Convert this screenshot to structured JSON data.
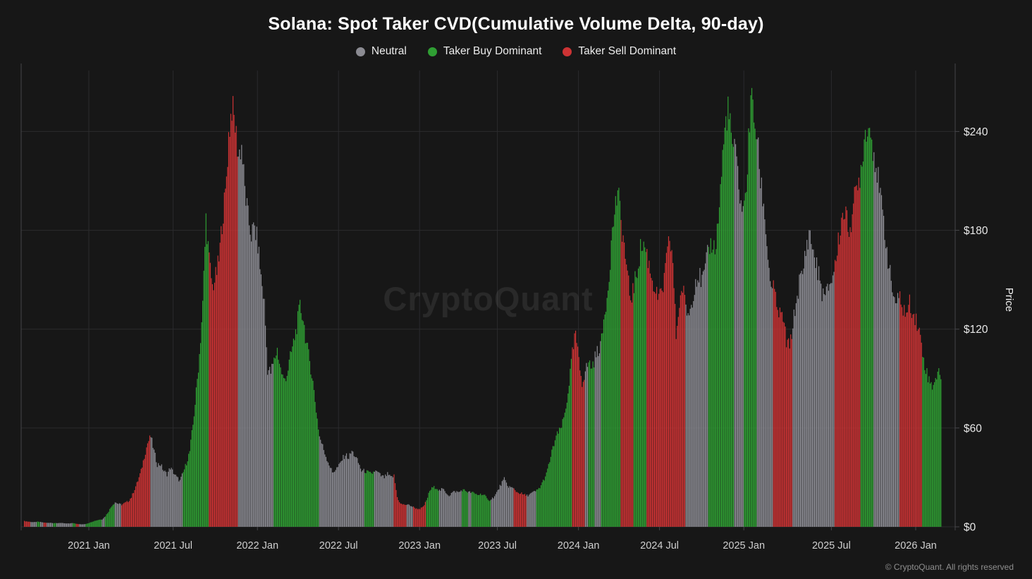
{
  "header": {
    "title": "Solana: Spot Taker CVD(Cumulative Volume Delta, 90-day)",
    "legend": [
      {
        "label": "Neutral",
        "color": "#8b8b92"
      },
      {
        "label": "Taker Buy Dominant",
        "color": "#2f9e33"
      },
      {
        "label": "Taker Sell Dominant",
        "color": "#cd3334"
      }
    ]
  },
  "watermark": {
    "text": "CryptoQuant"
  },
  "footer": {
    "copyright": "© CryptoQuant. All rights reserved"
  },
  "chart_data": {
    "type": "bar",
    "title": "Solana: Spot Taker CVD(Cumulative Volume Delta, 90-day)",
    "xlabel": "",
    "ylabel": "Price",
    "ylim": [
      0,
      277
    ],
    "grid": true,
    "legend_position": "top-center",
    "y_ticks": [
      {
        "label": "$0",
        "value": 0
      },
      {
        "label": "$60",
        "value": 60
      },
      {
        "label": "$120",
        "value": 120
      },
      {
        "label": "$180",
        "value": 180
      },
      {
        "label": "$240",
        "value": 240
      }
    ],
    "x_ticks": [
      {
        "label": "2021 Jan",
        "index": 20
      },
      {
        "label": "2021 Jul",
        "index": 46
      },
      {
        "label": "2022 Jan",
        "index": 72
      },
      {
        "label": "2022 Jul",
        "index": 97
      },
      {
        "label": "2023 Jan",
        "index": 122
      },
      {
        "label": "2023 Jul",
        "index": 146
      },
      {
        "label": "2024 Jan",
        "index": 171
      },
      {
        "label": "2024 Jul",
        "index": 196
      },
      {
        "label": "2025 Jan",
        "index": 222
      },
      {
        "label": "2025 Jul",
        "index": 249
      },
      {
        "label": "2026 Jan",
        "index": 275
      }
    ],
    "interval": "weekly anchors starting 2020-08",
    "color_map": {
      "n": "neutral",
      "b": "taker_buy",
      "s": "taker_sell"
    },
    "colors": {
      "neutral": "#8b8b92",
      "taker_buy": "#2f9e33",
      "taker_sell": "#cd3334"
    },
    "points": [
      [
        3.5,
        "s"
      ],
      [
        3.2,
        "s"
      ],
      [
        3.0,
        "n"
      ],
      [
        2.8,
        "n"
      ],
      [
        3.1,
        "b"
      ],
      [
        2.9,
        "n"
      ],
      [
        2.6,
        "s"
      ],
      [
        2.4,
        "n"
      ],
      [
        2.5,
        "n"
      ],
      [
        2.3,
        "b"
      ],
      [
        2.2,
        "n"
      ],
      [
        2.4,
        "n"
      ],
      [
        2.2,
        "n"
      ],
      [
        2.0,
        "n"
      ],
      [
        2.1,
        "n"
      ],
      [
        2.3,
        "b"
      ],
      [
        1.9,
        "s"
      ],
      [
        1.6,
        "n"
      ],
      [
        1.5,
        "n"
      ],
      [
        1.8,
        "b"
      ],
      [
        2.4,
        "b"
      ],
      [
        3.2,
        "b"
      ],
      [
        3.8,
        "b"
      ],
      [
        4.3,
        "b"
      ],
      [
        4.6,
        "n"
      ],
      [
        6.5,
        "b"
      ],
      [
        9.5,
        "b"
      ],
      [
        13,
        "b"
      ],
      [
        15,
        "n"
      ],
      [
        14,
        "n"
      ],
      [
        13.5,
        "s"
      ],
      [
        14.5,
        "s"
      ],
      [
        15.5,
        "s"
      ],
      [
        18,
        "s"
      ],
      [
        23,
        "s"
      ],
      [
        28,
        "s"
      ],
      [
        34,
        "s"
      ],
      [
        43,
        "s"
      ],
      [
        51,
        "s"
      ],
      [
        55,
        "n"
      ],
      [
        46,
        "n"
      ],
      [
        38,
        "n"
      ],
      [
        38,
        "n"
      ],
      [
        34,
        "n"
      ],
      [
        32,
        "n"
      ],
      [
        36,
        "n"
      ],
      [
        33,
        "n"
      ],
      [
        30,
        "n"
      ],
      [
        28,
        "n"
      ],
      [
        33,
        "b"
      ],
      [
        39,
        "b"
      ],
      [
        46,
        "b"
      ],
      [
        62,
        "b"
      ],
      [
        82,
        "b"
      ],
      [
        105,
        "b"
      ],
      [
        135,
        "b"
      ],
      [
        188,
        "b"
      ],
      [
        162,
        "s"
      ],
      [
        146,
        "s"
      ],
      [
        152,
        "s"
      ],
      [
        162,
        "s"
      ],
      [
        186,
        "s"
      ],
      [
        202,
        "s"
      ],
      [
        238,
        "s"
      ],
      [
        256,
        "s"
      ],
      [
        244,
        "s"
      ],
      [
        226,
        "n"
      ],
      [
        232,
        "n"
      ],
      [
        205,
        "n"
      ],
      [
        188,
        "n"
      ],
      [
        178,
        "n"
      ],
      [
        182,
        "n"
      ],
      [
        172,
        "n"
      ],
      [
        152,
        "n"
      ],
      [
        136,
        "n"
      ],
      [
        96,
        "n"
      ],
      [
        94,
        "n"
      ],
      [
        101,
        "b"
      ],
      [
        108,
        "b"
      ],
      [
        96,
        "b"
      ],
      [
        89,
        "b"
      ],
      [
        93,
        "b"
      ],
      [
        103,
        "b"
      ],
      [
        112,
        "b"
      ],
      [
        122,
        "b"
      ],
      [
        134,
        "b"
      ],
      [
        127,
        "b"
      ],
      [
        111,
        "b"
      ],
      [
        101,
        "b"
      ],
      [
        88,
        "b"
      ],
      [
        71,
        "b"
      ],
      [
        55,
        "n"
      ],
      [
        49,
        "n"
      ],
      [
        43,
        "n"
      ],
      [
        38,
        "n"
      ],
      [
        33,
        "n"
      ],
      [
        35,
        "n"
      ],
      [
        37,
        "n"
      ],
      [
        41,
        "n"
      ],
      [
        44,
        "n"
      ],
      [
        42,
        "n"
      ],
      [
        46,
        "n"
      ],
      [
        43,
        "n"
      ],
      [
        39,
        "n"
      ],
      [
        34,
        "n"
      ],
      [
        34,
        "b"
      ],
      [
        33,
        "b"
      ],
      [
        32,
        "b"
      ],
      [
        34,
        "n"
      ],
      [
        33,
        "n"
      ],
      [
        31,
        "n"
      ],
      [
        30,
        "n"
      ],
      [
        32,
        "n"
      ],
      [
        30,
        "n"
      ],
      [
        31,
        "s"
      ],
      [
        18,
        "s"
      ],
      [
        14,
        "s"
      ],
      [
        13.5,
        "s"
      ],
      [
        13.5,
        "n"
      ],
      [
        13,
        "n"
      ],
      [
        12,
        "s"
      ],
      [
        11,
        "s"
      ],
      [
        11,
        "s"
      ],
      [
        12,
        "s"
      ],
      [
        16,
        "b"
      ],
      [
        22,
        "b"
      ],
      [
        24,
        "b"
      ],
      [
        24,
        "b"
      ],
      [
        22,
        "n"
      ],
      [
        23,
        "n"
      ],
      [
        21,
        "n"
      ],
      [
        19,
        "n"
      ],
      [
        21,
        "n"
      ],
      [
        21.5,
        "n"
      ],
      [
        21,
        "n"
      ],
      [
        22.5,
        "b"
      ],
      [
        22,
        "b"
      ],
      [
        21,
        "n"
      ],
      [
        21,
        "b"
      ],
      [
        20,
        "b"
      ],
      [
        19.5,
        "b"
      ],
      [
        20,
        "b"
      ],
      [
        19,
        "b"
      ],
      [
        16,
        "b"
      ],
      [
        17,
        "n"
      ],
      [
        18.5,
        "n"
      ],
      [
        22,
        "n"
      ],
      [
        26,
        "n"
      ],
      [
        29,
        "n"
      ],
      [
        25,
        "n"
      ],
      [
        24,
        "n"
      ],
      [
        23,
        "s"
      ],
      [
        21,
        "s"
      ],
      [
        20.5,
        "s"
      ],
      [
        19.5,
        "s"
      ],
      [
        19,
        "n"
      ],
      [
        20,
        "n"
      ],
      [
        21,
        "n"
      ],
      [
        22,
        "b"
      ],
      [
        24,
        "b"
      ],
      [
        28,
        "b"
      ],
      [
        32,
        "b"
      ],
      [
        40,
        "b"
      ],
      [
        48,
        "b"
      ],
      [
        55,
        "b"
      ],
      [
        58,
        "b"
      ],
      [
        63,
        "b"
      ],
      [
        72,
        "b"
      ],
      [
        88,
        "b"
      ],
      [
        105,
        "s"
      ],
      [
        118,
        "s"
      ],
      [
        100,
        "s"
      ],
      [
        88,
        "s"
      ],
      [
        95,
        "n"
      ],
      [
        100,
        "b"
      ],
      [
        97,
        "b"
      ],
      [
        103,
        "n"
      ],
      [
        108,
        "n"
      ],
      [
        113,
        "b"
      ],
      [
        131,
        "b"
      ],
      [
        146,
        "b"
      ],
      [
        172,
        "b"
      ],
      [
        192,
        "b"
      ],
      [
        204,
        "b"
      ],
      [
        186,
        "s"
      ],
      [
        171,
        "s"
      ],
      [
        151,
        "s"
      ],
      [
        139,
        "s"
      ],
      [
        146,
        "b"
      ],
      [
        156,
        "b"
      ],
      [
        169,
        "b"
      ],
      [
        172,
        "b"
      ],
      [
        166,
        "s"
      ],
      [
        156,
        "s"
      ],
      [
        148,
        "s"
      ],
      [
        141,
        "s"
      ],
      [
        139,
        "s"
      ],
      [
        146,
        "s"
      ],
      [
        161,
        "s"
      ],
      [
        176,
        "s"
      ],
      [
        161,
        "s"
      ],
      [
        116,
        "s"
      ],
      [
        136,
        "s"
      ],
      [
        146,
        "s"
      ],
      [
        133,
        "n"
      ],
      [
        129,
        "n"
      ],
      [
        139,
        "n"
      ],
      [
        151,
        "n"
      ],
      [
        153,
        "n"
      ],
      [
        149,
        "n"
      ],
      [
        156,
        "n"
      ],
      [
        169,
        "b"
      ],
      [
        173,
        "b"
      ],
      [
        169,
        "b"
      ],
      [
        186,
        "b"
      ],
      [
        216,
        "b"
      ],
      [
        241,
        "b"
      ],
      [
        256,
        "b"
      ],
      [
        236,
        "b"
      ],
      [
        229,
        "n"
      ],
      [
        216,
        "n"
      ],
      [
        196,
        "n"
      ],
      [
        193,
        "b"
      ],
      [
        219,
        "b"
      ],
      [
        263,
        "b"
      ],
      [
        249,
        "b"
      ],
      [
        236,
        "n"
      ],
      [
        211,
        "n"
      ],
      [
        196,
        "n"
      ],
      [
        173,
        "n"
      ],
      [
        149,
        "n"
      ],
      [
        146,
        "s"
      ],
      [
        133,
        "s"
      ],
      [
        129,
        "s"
      ],
      [
        127,
        "s"
      ],
      [
        113,
        "s"
      ],
      [
        109,
        "s"
      ],
      [
        123,
        "n"
      ],
      [
        136,
        "n"
      ],
      [
        149,
        "n"
      ],
      [
        153,
        "n"
      ],
      [
        169,
        "n"
      ],
      [
        179,
        "n"
      ],
      [
        171,
        "n"
      ],
      [
        161,
        "n"
      ],
      [
        153,
        "n"
      ],
      [
        143,
        "n"
      ],
      [
        139,
        "n"
      ],
      [
        146,
        "n"
      ],
      [
        151,
        "n"
      ],
      [
        159,
        "s"
      ],
      [
        173,
        "s"
      ],
      [
        187,
        "s"
      ],
      [
        193,
        "s"
      ],
      [
        181,
        "s"
      ],
      [
        187,
        "s"
      ],
      [
        199,
        "s"
      ],
      [
        206,
        "s"
      ],
      [
        219,
        "b"
      ],
      [
        236,
        "b"
      ],
      [
        246,
        "b"
      ],
      [
        239,
        "b"
      ],
      [
        229,
        "n"
      ],
      [
        216,
        "n"
      ],
      [
        199,
        "n"
      ],
      [
        186,
        "n"
      ],
      [
        169,
        "n"
      ],
      [
        153,
        "n"
      ],
      [
        141,
        "n"
      ],
      [
        136,
        "n"
      ],
      [
        139,
        "s"
      ],
      [
        133,
        "s"
      ],
      [
        129,
        "s"
      ],
      [
        136,
        "s"
      ],
      [
        131,
        "s"
      ],
      [
        126,
        "s"
      ],
      [
        119,
        "s"
      ],
      [
        106,
        "b"
      ],
      [
        96,
        "b"
      ],
      [
        89,
        "b"
      ],
      [
        86,
        "b"
      ],
      [
        91,
        "b"
      ],
      [
        93,
        "b"
      ]
    ]
  }
}
